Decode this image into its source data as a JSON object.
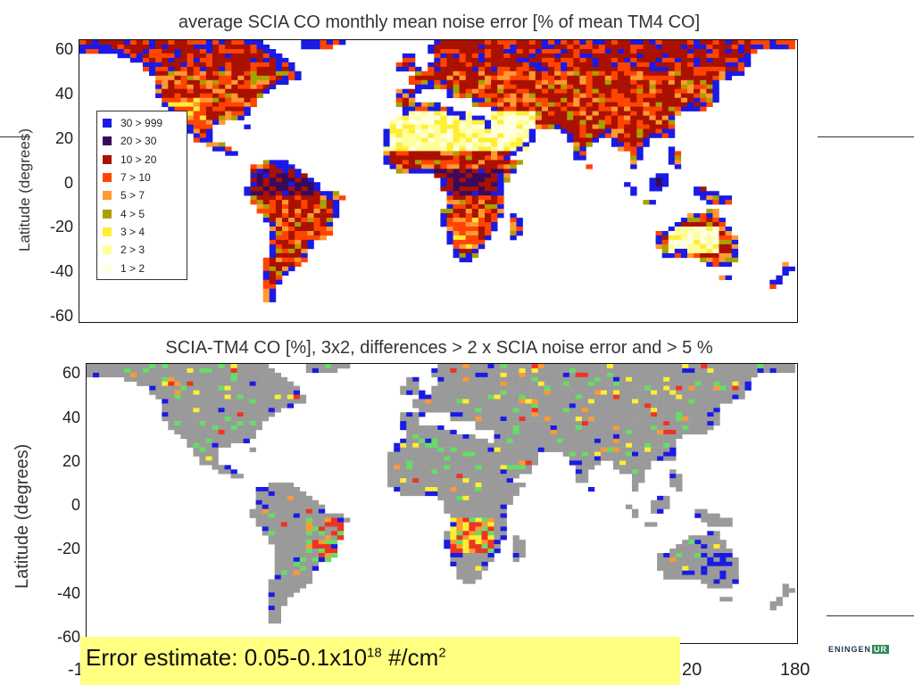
{
  "top_map": {
    "title": "average SCIA CO monthly mean noise error [% of mean TM4 CO]",
    "ylabel": "Latitude (degrees)",
    "yticks": [
      "60",
      "40",
      "20",
      "0",
      "-20",
      "-40",
      "-60"
    ],
    "legend": [
      {
        "label": "30 > 999",
        "color": "#1a1ae6"
      },
      {
        "label": "20 > 30",
        "color": "#3a0a5a"
      },
      {
        "label": "10 > 20",
        "color": "#aa1100"
      },
      {
        "label": "7 > 10",
        "color": "#ff4400"
      },
      {
        "label": "5 > 7",
        "color": "#ff9933"
      },
      {
        "label": "4 > 5",
        "color": "#aaa000"
      },
      {
        "label": "3 > 4",
        "color": "#ffee33"
      },
      {
        "label": "2 > 3",
        "color": "#ffff99"
      },
      {
        "label": "1 > 2",
        "color": "#ffffe0"
      }
    ]
  },
  "bottom_map": {
    "title": "SCIA-TM4 CO [%], 3x2, differences > 2 x SCIA noise error and > 5 %",
    "ylabel": "Latitude (degrees)",
    "yticks": [
      "60",
      "40",
      "20",
      "0",
      "-20",
      "-40",
      "-60"
    ],
    "xticks_visible": [
      "-1",
      "20",
      "180"
    ]
  },
  "callout": {
    "text_main": "Error estimate: 0.05-0.1x10",
    "exp1": "18",
    "text_mid": " #/cm",
    "exp2": "2"
  },
  "logo": {
    "text": "ENINGEN",
    "tag": "UR"
  },
  "colors": {
    "ocean": "#ffffff",
    "land_no_data": "#9a9a9a",
    "frame": "#111111"
  }
}
